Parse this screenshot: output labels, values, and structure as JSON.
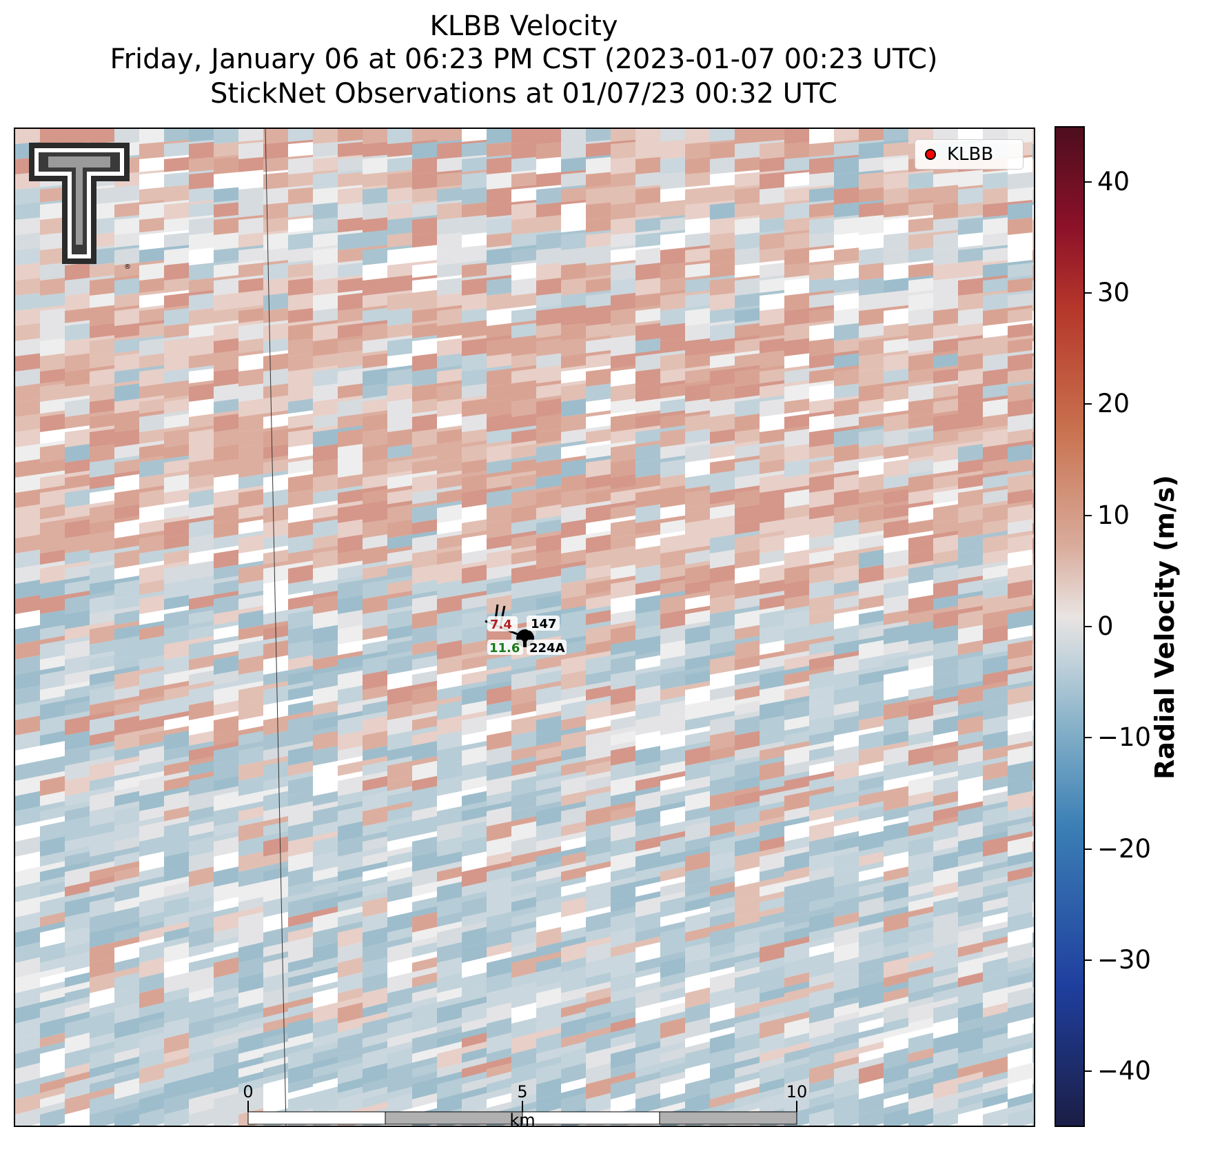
{
  "title": {
    "line1": "KLBB Velocity",
    "line2": "Friday, January 06 at 06:23 PM CST (2023-01-07 00:23 UTC)",
    "line3": "StickNet Observations at 01/07/23 00:32 UTC"
  },
  "legend": {
    "label": "KLBB",
    "marker_color": "#ff0000"
  },
  "colorbar": {
    "label": "Radial Velocity (m/s)",
    "range": [
      -45,
      45
    ],
    "ticks": [
      "40",
      "30",
      "20",
      "10",
      "0",
      "−10",
      "−20",
      "−30",
      "−40"
    ],
    "tick_values": [
      40,
      30,
      20,
      10,
      0,
      -10,
      -20,
      -30,
      -40
    ]
  },
  "station": {
    "id_top": "147",
    "id_bottom": "224A",
    "temperature": "7.4",
    "dewpoint": "11.6",
    "temperature_color": "#b22222",
    "dewpoint_color": "#1a7a1a"
  },
  "scalebar": {
    "unit": "km",
    "labels": [
      "0",
      "5",
      "10"
    ],
    "values": [
      0,
      5,
      10
    ]
  },
  "logo": {
    "name": "texas-tech-double-t-logo",
    "mark": "®"
  }
}
